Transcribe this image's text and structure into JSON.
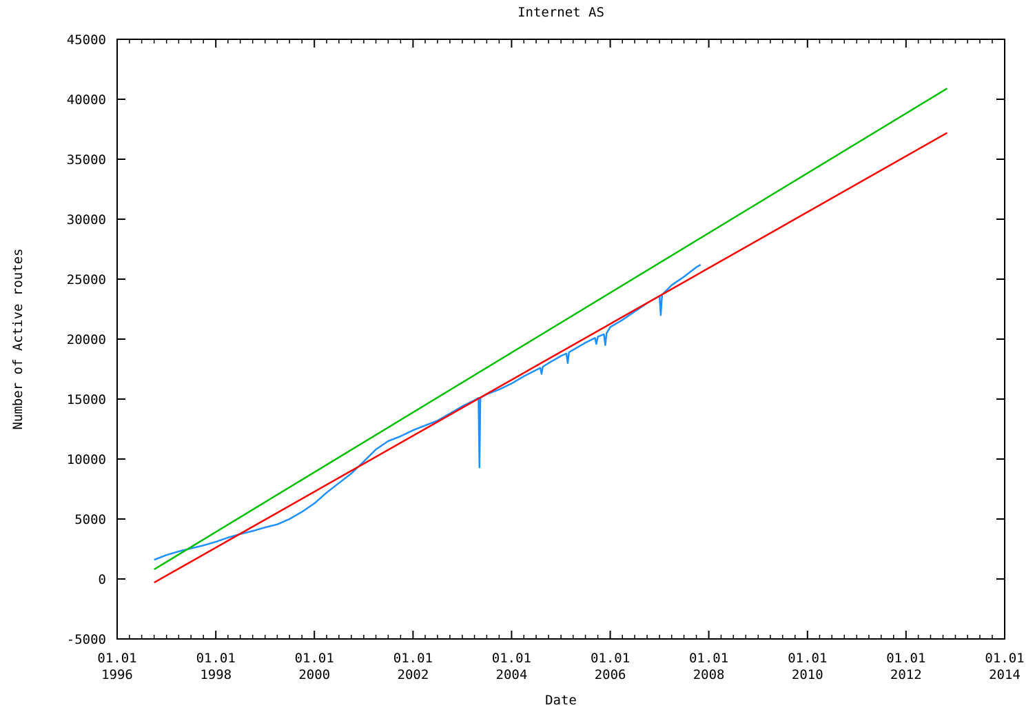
{
  "chart_data": {
    "type": "line",
    "title": "Internet AS",
    "xlabel": "Date",
    "ylabel": "Number of Active routes",
    "x_axis": {
      "min": "1996-01-01",
      "max": "2014-01-01",
      "ticks": [
        {
          "date": "1996-01-01",
          "label_top": "01.01",
          "label_bottom": "1996"
        },
        {
          "date": "1998-01-01",
          "label_top": "01.01",
          "label_bottom": "1998"
        },
        {
          "date": "2000-01-01",
          "label_top": "01.01",
          "label_bottom": "2000"
        },
        {
          "date": "2002-01-01",
          "label_top": "01.01",
          "label_bottom": "2002"
        },
        {
          "date": "2004-01-01",
          "label_top": "01.01",
          "label_bottom": "2004"
        },
        {
          "date": "2006-01-01",
          "label_top": "01.01",
          "label_bottom": "2006"
        },
        {
          "date": "2008-01-01",
          "label_top": "01.01",
          "label_bottom": "2008"
        },
        {
          "date": "2010-01-01",
          "label_top": "01.01",
          "label_bottom": "2010"
        },
        {
          "date": "2012-01-01",
          "label_top": "01.01",
          "label_bottom": "2012"
        },
        {
          "date": "2014-01-01",
          "label_top": "01.01",
          "label_bottom": "2014"
        }
      ]
    },
    "y_axis": {
      "min": -5000,
      "max": 45000,
      "ticks": [
        -5000,
        0,
        5000,
        10000,
        15000,
        20000,
        25000,
        30000,
        35000,
        40000,
        45000
      ]
    },
    "grid": false,
    "legend": "none",
    "series": [
      {
        "color": "#1e90ff",
        "points": [
          [
            "1996-10-01",
            1600
          ],
          [
            "1997-01-01",
            2000
          ],
          [
            "1997-04-01",
            2300
          ],
          [
            "1997-07-01",
            2550
          ],
          [
            "1997-10-01",
            2800
          ],
          [
            "1998-01-01",
            3100
          ],
          [
            "1998-04-01",
            3450
          ],
          [
            "1998-07-01",
            3750
          ],
          [
            "1998-10-01",
            4000
          ],
          [
            "1999-01-01",
            4300
          ],
          [
            "1999-04-01",
            4550
          ],
          [
            "1999-07-01",
            5000
          ],
          [
            "1999-10-01",
            5600
          ],
          [
            "2000-01-01",
            6300
          ],
          [
            "2000-04-01",
            7200
          ],
          [
            "2000-07-01",
            8000
          ],
          [
            "2000-10-01",
            8800
          ],
          [
            "2001-01-01",
            9800
          ],
          [
            "2001-04-01",
            10800
          ],
          [
            "2001-07-01",
            11500
          ],
          [
            "2001-10-01",
            11900
          ],
          [
            "2002-01-01",
            12400
          ],
          [
            "2002-04-01",
            12800
          ],
          [
            "2002-07-01",
            13200
          ],
          [
            "2002-10-01",
            13800
          ],
          [
            "2003-01-01",
            14400
          ],
          [
            "2003-04-01",
            14900
          ],
          [
            "2003-05-01",
            15100
          ],
          [
            "2003-05-08",
            9300
          ],
          [
            "2003-05-15",
            15100
          ],
          [
            "2003-07-01",
            15400
          ],
          [
            "2003-10-01",
            15800
          ],
          [
            "2004-01-01",
            16300
          ],
          [
            "2004-04-01",
            16900
          ],
          [
            "2004-08-01",
            17600
          ],
          [
            "2004-08-10",
            17100
          ],
          [
            "2004-08-20",
            17700
          ],
          [
            "2004-10-01",
            18000
          ],
          [
            "2005-01-01",
            18600
          ],
          [
            "2005-02-10",
            18800
          ],
          [
            "2005-02-20",
            18000
          ],
          [
            "2005-03-01",
            18900
          ],
          [
            "2005-07-01",
            19700
          ],
          [
            "2005-09-10",
            20100
          ],
          [
            "2005-09-20",
            19600
          ],
          [
            "2005-10-01",
            20200
          ],
          [
            "2005-11-15",
            20400
          ],
          [
            "2005-11-25",
            19500
          ],
          [
            "2005-12-05",
            20500
          ],
          [
            "2006-01-01",
            21000
          ],
          [
            "2006-04-01",
            21600
          ],
          [
            "2006-07-01",
            22300
          ],
          [
            "2006-10-01",
            23000
          ],
          [
            "2007-01-01",
            23600
          ],
          [
            "2007-01-10",
            22000
          ],
          [
            "2007-01-20",
            23700
          ],
          [
            "2007-04-01",
            24500
          ],
          [
            "2007-07-01",
            25200
          ],
          [
            "2007-10-01",
            26000
          ],
          [
            "2007-11-01",
            26200
          ]
        ]
      },
      {
        "color": "#ff0000",
        "points": [
          [
            "1996-10-01",
            -300
          ],
          [
            "2012-11-01",
            37200
          ]
        ]
      },
      {
        "color": "#00c000",
        "points": [
          [
            "1996-10-01",
            800
          ],
          [
            "2012-11-01",
            40900
          ]
        ]
      }
    ]
  }
}
